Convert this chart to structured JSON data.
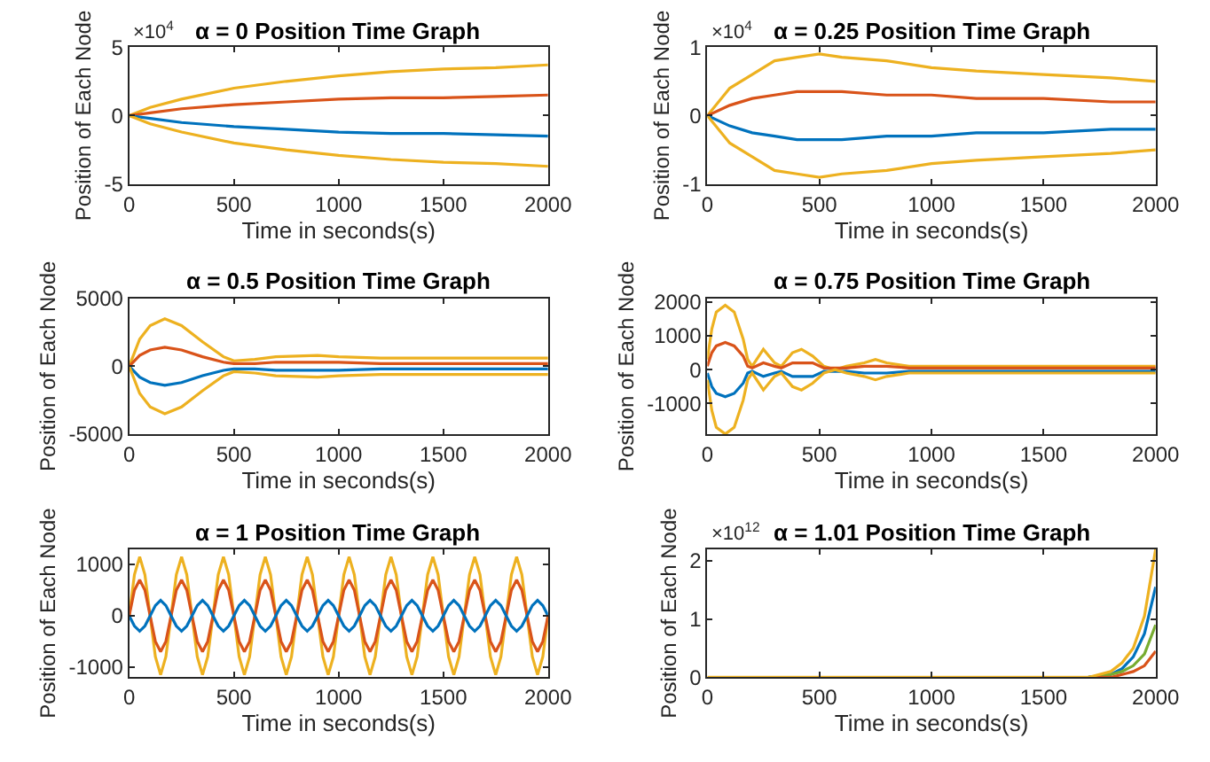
{
  "chart_data": [
    {
      "type": "line",
      "title": "α = 0 Position Time Graph",
      "xlabel": "Time in seconds(s)",
      "ylabel": "Position of Each Node",
      "annotations": [
        "×10$^{4}$"
      ],
      "x": [
        0,
        100,
        250,
        500,
        750,
        1000,
        1250,
        1500,
        1750,
        2000
      ],
      "xlim": [
        0,
        2000
      ],
      "xticks": [
        0,
        500,
        1000,
        1500,
        2000
      ],
      "ylim": [
        -5,
        5
      ],
      "yticks": [
        -5,
        0,
        5
      ],
      "series": [
        {
          "color": "#edb120",
          "values": [
            0,
            0.6,
            1.2,
            2,
            2.5,
            2.9,
            3.2,
            3.4,
            3.5,
            3.7
          ]
        },
        {
          "color": "#d95319",
          "values": [
            0,
            0.2,
            0.5,
            0.8,
            1,
            1.2,
            1.3,
            1.3,
            1.4,
            1.5
          ]
        },
        {
          "color": "#0072bd",
          "values": [
            0,
            -0.2,
            -0.5,
            -0.8,
            -1,
            -1.2,
            -1.3,
            -1.3,
            -1.4,
            -1.5
          ]
        },
        {
          "color": "#edb120",
          "values": [
            0,
            -0.6,
            -1.2,
            -2,
            -2.5,
            -2.9,
            -3.2,
            -3.4,
            -3.5,
            -3.7
          ]
        }
      ]
    },
    {
      "type": "line",
      "title": "α = 0.25 Position Time Graph",
      "xlabel": "Time in seconds(s)",
      "ylabel": "Position of Each Node",
      "annotations": [
        "×10$^{4}$"
      ],
      "x": [
        0,
        100,
        200,
        300,
        400,
        500,
        600,
        800,
        1000,
        1200,
        1500,
        1800,
        2000
      ],
      "xlim": [
        0,
        2000
      ],
      "xticks": [
        0,
        500,
        1000,
        1500,
        2000
      ],
      "ylim": [
        -1,
        1
      ],
      "yticks": [
        -1,
        0,
        1
      ],
      "series": [
        {
          "color": "#edb120",
          "values": [
            0,
            0.4,
            0.6,
            0.8,
            0.85,
            0.9,
            0.85,
            0.8,
            0.7,
            0.65,
            0.6,
            0.55,
            0.5
          ]
        },
        {
          "color": "#d95319",
          "values": [
            0,
            0.15,
            0.25,
            0.3,
            0.35,
            0.35,
            0.35,
            0.3,
            0.3,
            0.25,
            0.25,
            0.2,
            0.2
          ]
        },
        {
          "color": "#0072bd",
          "values": [
            0,
            -0.15,
            -0.25,
            -0.3,
            -0.35,
            -0.35,
            -0.35,
            -0.3,
            -0.3,
            -0.25,
            -0.25,
            -0.2,
            -0.2
          ]
        },
        {
          "color": "#edb120",
          "values": [
            0,
            -0.4,
            -0.6,
            -0.8,
            -0.85,
            -0.9,
            -0.85,
            -0.8,
            -0.7,
            -0.65,
            -0.6,
            -0.55,
            -0.5
          ]
        }
      ]
    },
    {
      "type": "line",
      "title": "α = 0.5 Position Time Graph",
      "xlabel": "Time in seconds(s)",
      "ylabel": "Position of Each Node",
      "x": [
        0,
        50,
        100,
        170,
        250,
        350,
        450,
        500,
        600,
        700,
        900,
        1000,
        1200,
        1500,
        1800,
        2000
      ],
      "xlim": [
        0,
        2000
      ],
      "xticks": [
        0,
        500,
        1000,
        1500,
        2000
      ],
      "ylim": [
        -5000,
        5000
      ],
      "yticks": [
        -5000,
        0,
        5000
      ],
      "series": [
        {
          "color": "#edb120",
          "values": [
            0,
            2000,
            3000,
            3500,
            3000,
            1800,
            700,
            400,
            500,
            700,
            800,
            700,
            600,
            600,
            600,
            600
          ]
        },
        {
          "color": "#d95319",
          "values": [
            0,
            800,
            1200,
            1400,
            1200,
            700,
            300,
            200,
            200,
            300,
            300,
            300,
            200,
            200,
            200,
            200
          ]
        },
        {
          "color": "#0072bd",
          "values": [
            0,
            -800,
            -1200,
            -1400,
            -1200,
            -700,
            -300,
            -200,
            -200,
            -300,
            -300,
            -300,
            -200,
            -200,
            -200,
            -200
          ]
        },
        {
          "color": "#edb120",
          "values": [
            0,
            -2000,
            -3000,
            -3500,
            -3000,
            -1800,
            -700,
            -400,
            -500,
            -700,
            -800,
            -700,
            -600,
            -600,
            -600,
            -600
          ]
        }
      ]
    },
    {
      "type": "line",
      "title": "α = 0.75 Position Time Graph",
      "xlabel": "Time in seconds(s)",
      "ylabel": "Position of Each Node",
      "x": [
        0,
        20,
        40,
        80,
        120,
        160,
        180,
        200,
        250,
        300,
        330,
        380,
        420,
        470,
        520,
        570,
        620,
        700,
        750,
        800,
        900,
        1000,
        1100,
        1200,
        1400,
        1600,
        1800,
        2000
      ],
      "xlim": [
        0,
        2000
      ],
      "xticks": [
        0,
        500,
        1000,
        1500,
        2000
      ],
      "ylim": [
        -1900,
        2100
      ],
      "yticks": [
        -1000,
        0,
        1000,
        2000
      ],
      "series": [
        {
          "color": "#edb120",
          "values": [
            300,
            1200,
            1700,
            1900,
            1700,
            900,
            300,
            100,
            600,
            200,
            100,
            500,
            600,
            400,
            100,
            0,
            100,
            200,
            300,
            200,
            100,
            100,
            100,
            100,
            100,
            100,
            100,
            100
          ]
        },
        {
          "color": "#d95319",
          "values": [
            100,
            500,
            700,
            800,
            700,
            400,
            100,
            50,
            200,
            100,
            50,
            200,
            200,
            200,
            50,
            50,
            50,
            100,
            100,
            100,
            50,
            50,
            50,
            50,
            50,
            50,
            50,
            50
          ]
        },
        {
          "color": "#0072bd",
          "values": [
            -100,
            -500,
            -700,
            -800,
            -700,
            -400,
            -100,
            -50,
            -200,
            -100,
            -50,
            -200,
            -200,
            -200,
            -50,
            -50,
            -50,
            -100,
            -100,
            -100,
            -50,
            -50,
            -50,
            -50,
            -50,
            -50,
            -50,
            -50
          ]
        },
        {
          "color": "#edb120",
          "values": [
            -300,
            -1200,
            -1700,
            -1900,
            -1700,
            -900,
            -300,
            -100,
            -600,
            -200,
            -100,
            -500,
            -600,
            -400,
            -100,
            0,
            -100,
            -200,
            -300,
            -200,
            -100,
            -100,
            -100,
            -100,
            -100,
            -100,
            -100,
            -100
          ]
        }
      ]
    },
    {
      "type": "line",
      "title": "α = 1 Position Time Graph",
      "xlabel": "Time in seconds(s)",
      "ylabel": "Position of Each Node",
      "x": [
        0,
        25,
        50,
        75,
        100,
        125,
        150,
        175,
        200,
        225,
        250,
        275,
        300,
        325,
        350,
        375,
        400,
        425,
        450,
        475,
        500,
        525,
        550,
        575,
        600,
        625,
        650,
        675,
        700,
        725,
        750,
        775,
        800,
        825,
        850,
        875,
        900,
        925,
        950,
        975,
        1000,
        1025,
        1050,
        1075,
        1100,
        1125,
        1150,
        1175,
        1200,
        1225,
        1250,
        1275,
        1300,
        1325,
        1350,
        1375,
        1400,
        1425,
        1450,
        1475,
        1500,
        1525,
        1550,
        1575,
        1600,
        1625,
        1650,
        1675,
        1700,
        1725,
        1750,
        1775,
        1800,
        1825,
        1850,
        1875,
        1900,
        1925,
        1950,
        1975,
        2000
      ],
      "xlim": [
        0,
        2000
      ],
      "xticks": [
        0,
        500,
        1000,
        1500,
        2000
      ],
      "ylim": [
        -1200,
        1300
      ],
      "yticks": [
        -1000,
        0,
        1000
      ],
      "series": [
        {
          "color": "#edb120",
          "values": [
            0,
            800,
            1150,
            800,
            0,
            -800,
            -1150,
            -800,
            0,
            800,
            1150,
            800,
            0,
            -800,
            -1150,
            -800,
            0,
            800,
            1150,
            800,
            0,
            -800,
            -1150,
            -800,
            0,
            800,
            1150,
            800,
            0,
            -800,
            -1150,
            -800,
            0,
            800,
            1150,
            800,
            0,
            -800,
            -1150,
            -800,
            0,
            800,
            1150,
            800,
            0,
            -800,
            -1150,
            -800,
            0,
            800,
            1150,
            800,
            0,
            -800,
            -1150,
            -800,
            0,
            800,
            1150,
            800,
            0,
            -800,
            -1150,
            -800,
            0,
            800,
            1150,
            800,
            0,
            -800,
            -1150,
            -800,
            0,
            800,
            1150,
            800,
            0,
            -800,
            -1150,
            -800,
            0
          ]
        },
        {
          "color": "#d95319",
          "values": [
            0,
            500,
            700,
            500,
            0,
            -500,
            -700,
            -500,
            0,
            500,
            700,
            500,
            0,
            -500,
            -700,
            -500,
            0,
            500,
            700,
            500,
            0,
            -500,
            -700,
            -500,
            0,
            500,
            700,
            500,
            0,
            -500,
            -700,
            -500,
            0,
            500,
            700,
            500,
            0,
            -500,
            -700,
            -500,
            0,
            500,
            700,
            500,
            0,
            -500,
            -700,
            -500,
            0,
            500,
            700,
            500,
            0,
            -500,
            -700,
            -500,
            0,
            500,
            700,
            500,
            0,
            -500,
            -700,
            -500,
            0,
            500,
            700,
            500,
            0,
            -500,
            -700,
            -500,
            0,
            500,
            700,
            500,
            0,
            -500,
            -700,
            -500,
            0
          ]
        },
        {
          "color": "#0072bd",
          "values": [
            0,
            -200,
            -300,
            -200,
            0,
            200,
            300,
            200,
            0,
            -200,
            -300,
            -200,
            0,
            200,
            300,
            200,
            0,
            -200,
            -300,
            -200,
            0,
            200,
            300,
            200,
            0,
            -200,
            -300,
            -200,
            0,
            200,
            300,
            200,
            0,
            -200,
            -300,
            -200,
            0,
            200,
            300,
            200,
            0,
            -200,
            -300,
            -200,
            0,
            200,
            300,
            200,
            0,
            -200,
            -300,
            -200,
            0,
            200,
            300,
            200,
            0,
            -200,
            -300,
            -200,
            0,
            200,
            300,
            200,
            0,
            -200,
            -300,
            -200,
            0,
            200,
            300,
            200,
            0,
            -200,
            -300,
            -200,
            0,
            200,
            300,
            200,
            0
          ]
        }
      ]
    },
    {
      "type": "line",
      "title": "α = 1.01 Position Time Graph",
      "xlabel": "Time in seconds(s)",
      "ylabel": "Position of Each Node",
      "annotations": [
        "×10$^{12}$"
      ],
      "x": [
        0,
        500,
        1000,
        1500,
        1700,
        1800,
        1850,
        1900,
        1950,
        2000
      ],
      "xlim": [
        0,
        2000
      ],
      "xticks": [
        0,
        500,
        1000,
        1500,
        2000
      ],
      "ylim": [
        0,
        2.2
      ],
      "yticks": [
        0,
        1,
        2
      ],
      "series": [
        {
          "color": "#0072bd",
          "values": [
            null,
            null,
            null,
            null,
            0,
            0.05,
            0.15,
            0.35,
            0.75,
            1.55
          ]
        },
        {
          "color": "#77ac30",
          "values": [
            null,
            null,
            null,
            null,
            0,
            0.05,
            0.1,
            0.2,
            0.4,
            0.9
          ]
        },
        {
          "color": "#d95319",
          "values": [
            null,
            null,
            null,
            null,
            0,
            0,
            0.05,
            0.1,
            0.2,
            0.45
          ]
        },
        {
          "color": "#edb120",
          "values": [
            0,
            0,
            0,
            0,
            0,
            0.1,
            0.25,
            0.5,
            1.05,
            2.2
          ]
        }
      ]
    }
  ]
}
